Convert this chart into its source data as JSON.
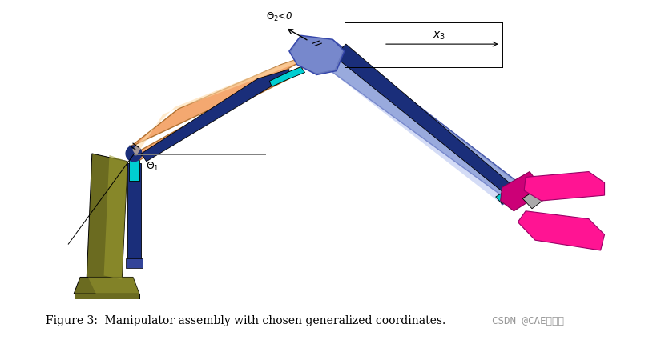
{
  "figure_width": 8.3,
  "figure_height": 4.25,
  "dpi": 100,
  "bg_color": "#ffffff",
  "caption": "Figure 3:  Manipulator assembly with chosen generalized coordinates.",
  "caption_suffix": "CSDN @CAE工作者",
  "caption_fontsize": 10,
  "colors": {
    "orange_arm": "#F4A870",
    "orange_light": "#FFDCAA",
    "blue_arm": "#8899CC",
    "blue_arm2": "#7080C0",
    "blue_light": "#AABBEE",
    "dark_navy": "#1A2E7A",
    "teal": "#00CED1",
    "olive_dark": "#6B6B20",
    "olive_light": "#9A9A30",
    "magenta": "#FF1493",
    "magenta_dark": "#CC0077",
    "gray": "#888888",
    "white": "#ffffff",
    "black": "#000000"
  }
}
